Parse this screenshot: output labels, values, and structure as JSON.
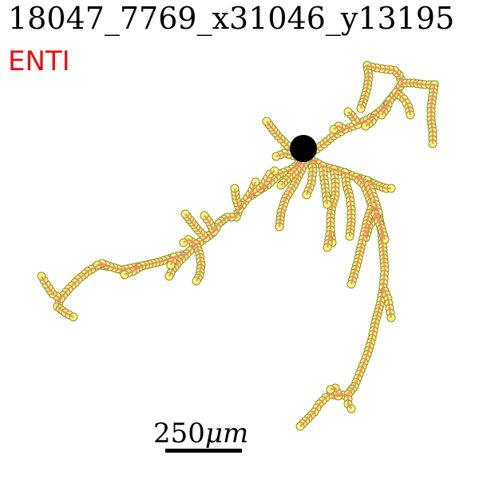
{
  "title": "18047_7769_x31046_y13195",
  "label": {
    "text": "ENTI",
    "color": "#e8120c"
  },
  "scale_bar": {
    "value": "250",
    "unit": "μm"
  },
  "colors": {
    "edge": "#f47f6e",
    "node_fill": "#fafa78",
    "node_stroke": "#8a8a2e",
    "soma": "#000000"
  }
}
